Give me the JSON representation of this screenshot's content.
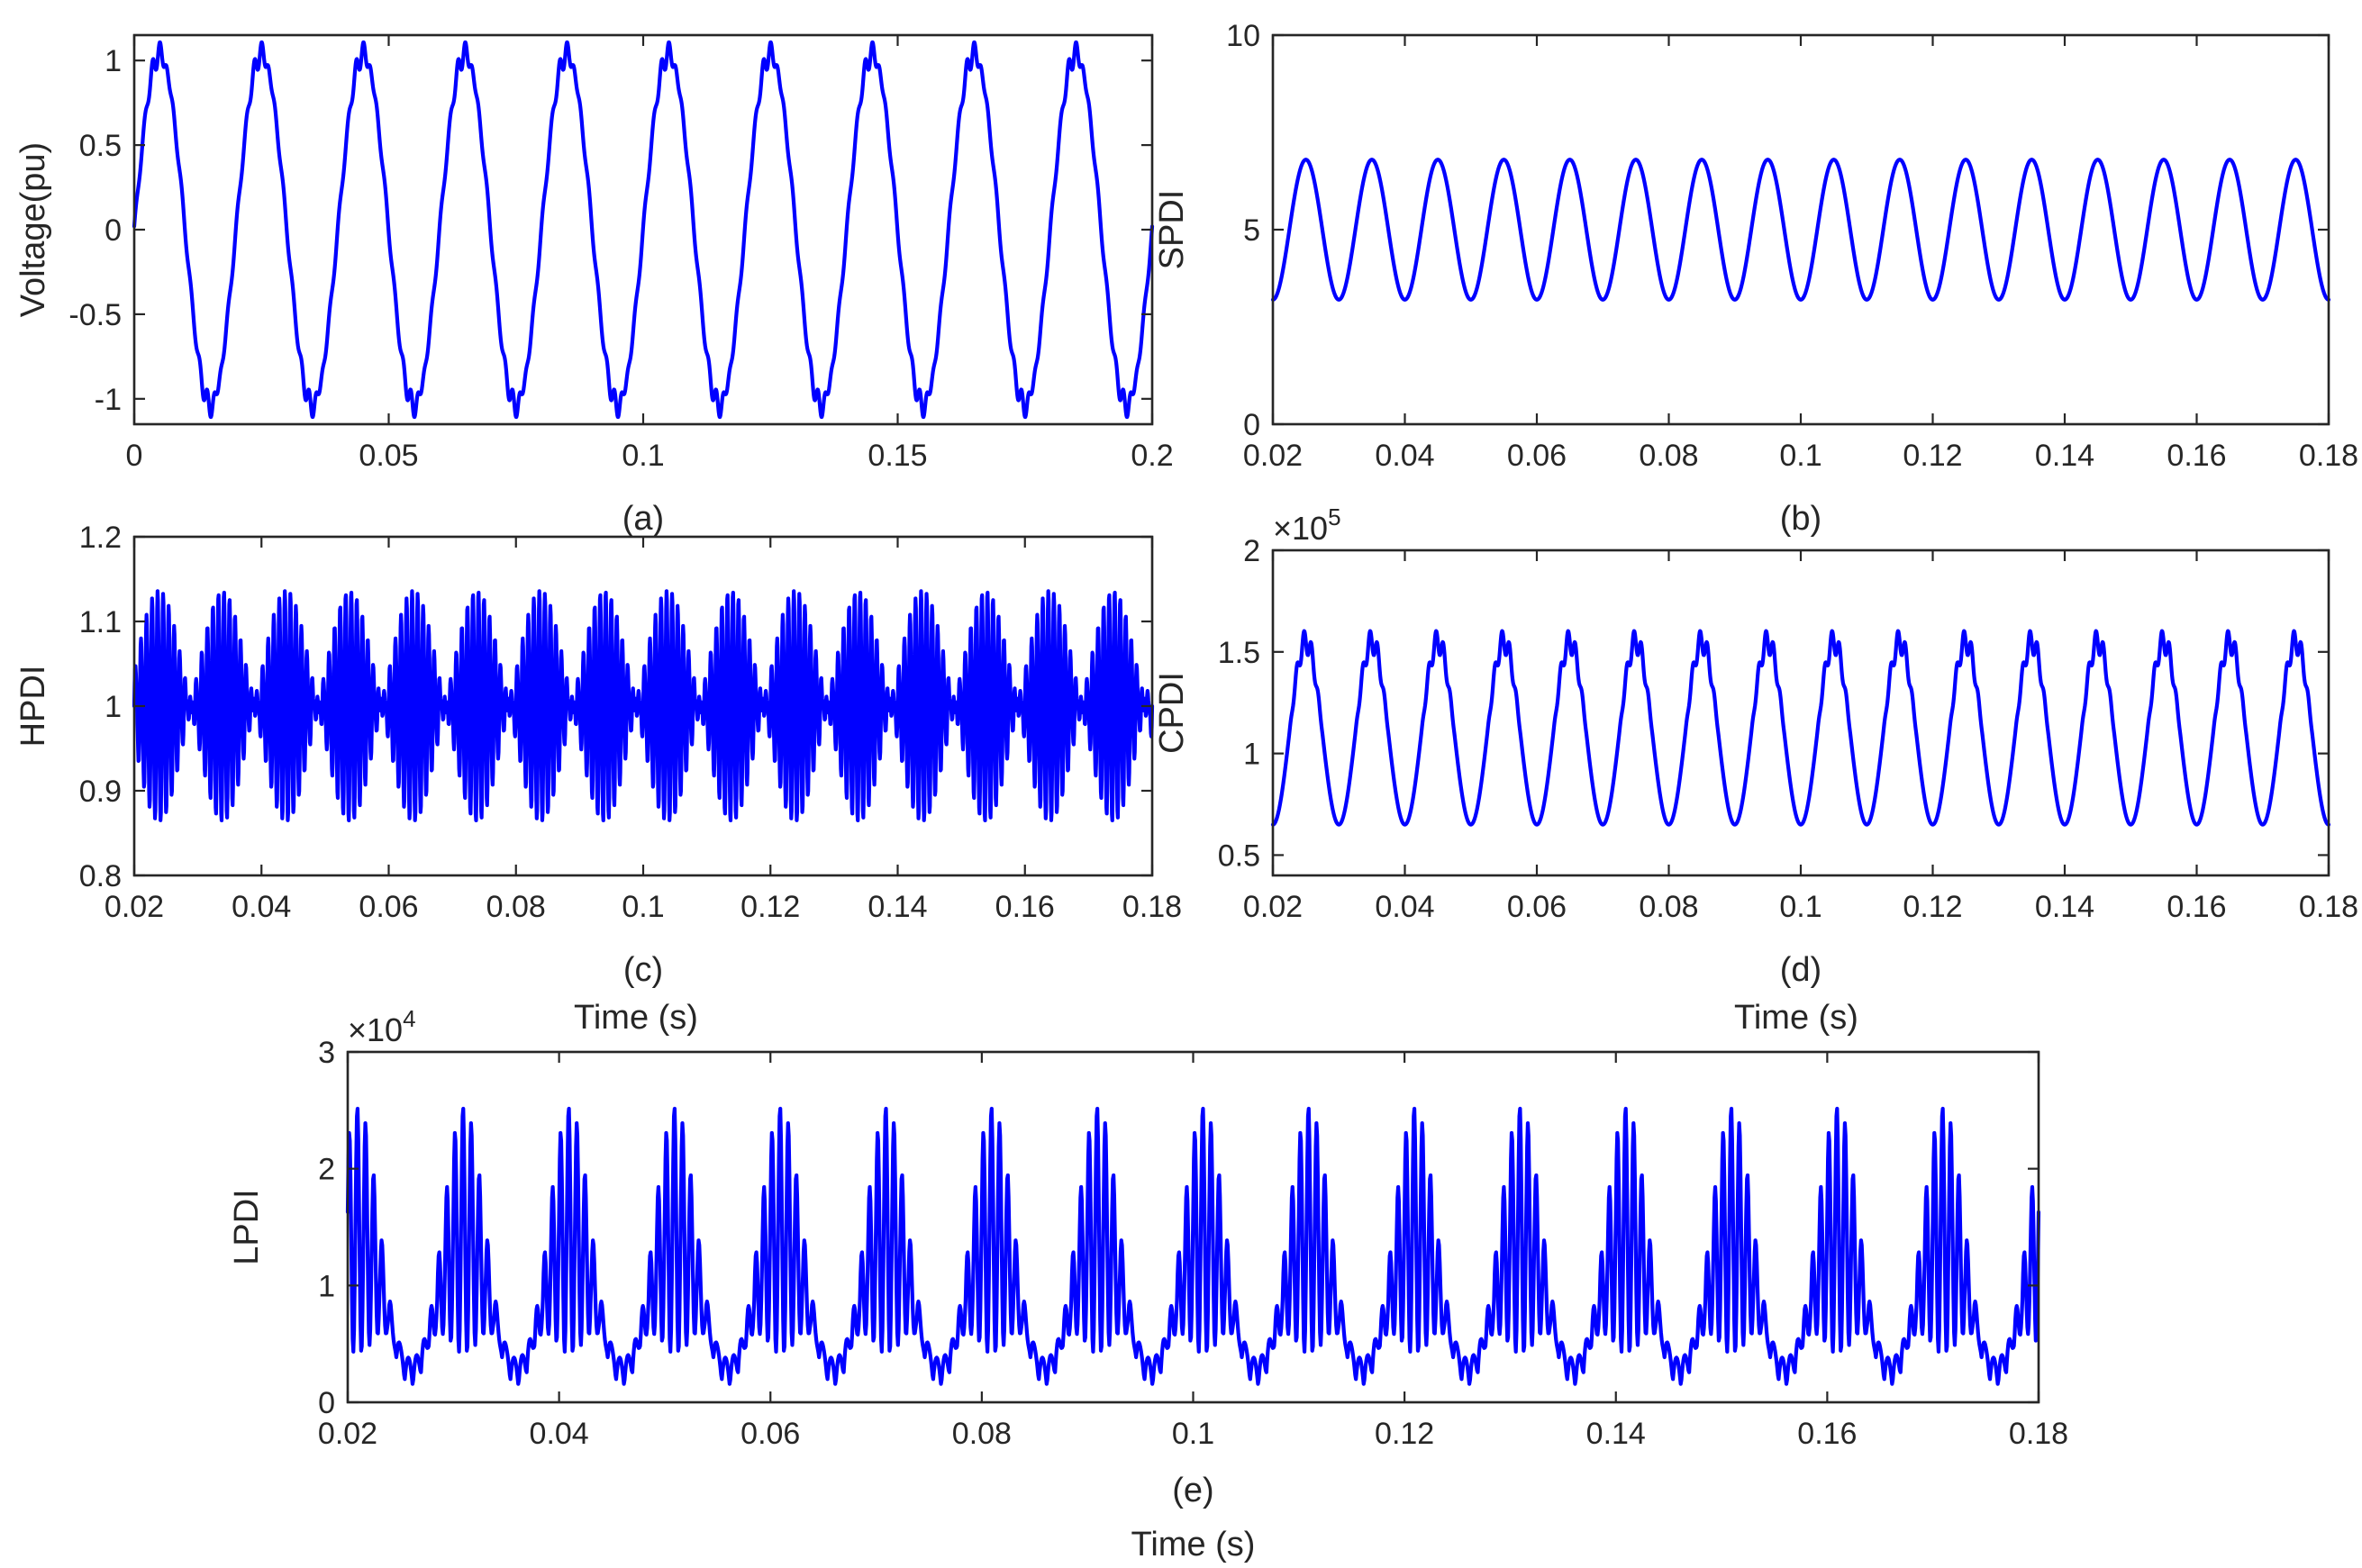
{
  "figure": {
    "series_color": "#0000FF",
    "stray_labels": [
      {
        "id": "time-label-stray-c",
        "text": "Time (s)"
      },
      {
        "id": "time-label-stray-d",
        "text": "Time (s)"
      }
    ]
  },
  "chart_data": [
    {
      "id": "a",
      "type": "line",
      "caption": "(a)",
      "xlabel": "",
      "ylabel": "Voltage(pu)",
      "xlim": [
        0,
        0.2
      ],
      "ylim": [
        -1.15,
        1.15
      ],
      "xticks": [
        0,
        0.05,
        0.1,
        0.15,
        0.2
      ],
      "xtick_labels": [
        "0",
        "0.05",
        "0.1",
        "0.15",
        "0.2"
      ],
      "yticks": [
        -1,
        -0.5,
        0,
        0.5,
        1
      ],
      "ytick_labels": [
        "-1",
        "-0.5",
        "0",
        "0.5",
        "1"
      ],
      "exponent": null,
      "grid": false,
      "series": [
        {
          "signal": "fundamental 50 Hz sine, amplitude ~1.05 pu, with high-frequency ripple near peaks (peaks ~1.12, troughs ~-1.13)",
          "frequency_hz": 50,
          "amplitude": 1.05,
          "peak": 1.12,
          "trough": -1.13
        }
      ]
    },
    {
      "id": "b",
      "type": "line",
      "caption": "(b)",
      "xlabel": "",
      "ylabel": "SPDI",
      "xlim": [
        0.02,
        0.18
      ],
      "ylim": [
        0,
        10
      ],
      "xticks": [
        0.02,
        0.04,
        0.06,
        0.08,
        0.1,
        0.12,
        0.14,
        0.16,
        0.18
      ],
      "xtick_labels": [
        "0.02",
        "0.04",
        "0.06",
        "0.08",
        "0.1",
        "0.12",
        "0.14",
        "0.16",
        "0.18"
      ],
      "yticks": [
        0,
        5,
        10
      ],
      "ytick_labels": [
        "0",
        "5",
        "10"
      ],
      "exponent": null,
      "grid": false,
      "series": [
        {
          "signal": "100 Hz smooth sinusoid oscillating between ~3.2 and ~6.8, first peak near x=0.025",
          "frequency_hz": 100,
          "min": 3.2,
          "max": 6.8
        }
      ]
    },
    {
      "id": "c",
      "type": "line",
      "caption": "(c)",
      "xlabel": "",
      "ylabel": "HPDI",
      "xlim": [
        0.02,
        0.18
      ],
      "ylim": [
        0.8,
        1.2
      ],
      "xticks": [
        0.02,
        0.04,
        0.06,
        0.08,
        0.1,
        0.12,
        0.14,
        0.16,
        0.18
      ],
      "xtick_labels": [
        "0.02",
        "0.04",
        "0.06",
        "0.08",
        "0.1",
        "0.12",
        "0.14",
        "0.16",
        "0.18"
      ],
      "yticks": [
        0.8,
        0.9,
        1,
        1.1,
        1.2
      ],
      "ytick_labels": [
        "0.8",
        "0.9",
        "1",
        "1.1",
        "1.2"
      ],
      "exponent": null,
      "grid": false,
      "series": [
        {
          "signal": "high-frequency oscillation around 1.0 with 100 Hz beating envelope, max ~1.15, min ~0.85",
          "center": 1.0,
          "max": 1.15,
          "min": 0.85
        }
      ]
    },
    {
      "id": "d",
      "type": "line",
      "caption": "(d)",
      "xlabel": "Time (s)",
      "ylabel": "CPDI",
      "xlim": [
        0.02,
        0.18
      ],
      "ylim": [
        0.4,
        2
      ],
      "xticks": [
        0.02,
        0.04,
        0.06,
        0.08,
        0.1,
        0.12,
        0.14,
        0.16,
        0.18
      ],
      "xtick_labels": [
        "0.02",
        "0.04",
        "0.06",
        "0.08",
        "0.1",
        "0.12",
        "0.14",
        "0.16",
        "0.18"
      ],
      "yticks": [
        0.5,
        1,
        1.5,
        2
      ],
      "ytick_labels": [
        "0.5",
        "1",
        "1.5",
        "2"
      ],
      "exponent": "5",
      "grid": false,
      "series": [
        {
          "signal": "100 Hz periodic waveform between ~0.65 and ~1.58 (x10^5) with ripple on upper half",
          "frequency_hz": 100,
          "min": 0.65,
          "max": 1.58
        }
      ]
    },
    {
      "id": "e",
      "type": "line",
      "caption": "(e)",
      "xlabel": "Time (s)",
      "ylabel": "LPDI",
      "xlim": [
        0.02,
        0.18
      ],
      "ylim": [
        0,
        3
      ],
      "xticks": [
        0.02,
        0.04,
        0.06,
        0.08,
        0.1,
        0.12,
        0.14,
        0.16,
        0.18
      ],
      "xtick_labels": [
        "0.02",
        "0.04",
        "0.06",
        "0.08",
        "0.1",
        "0.12",
        "0.14",
        "0.16",
        "0.18"
      ],
      "yticks": [
        0,
        1,
        2,
        3
      ],
      "ytick_labels": [
        "0",
        "1",
        "2",
        "3"
      ],
      "exponent": "4",
      "grid": false,
      "series": [
        {
          "signal": "100 Hz repeating bursts of high-frequency oscillation, range ~0 to ~2.65 (x10^4)",
          "frequency_hz": 100,
          "min": 0,
          "max": 2.65
        }
      ]
    }
  ]
}
